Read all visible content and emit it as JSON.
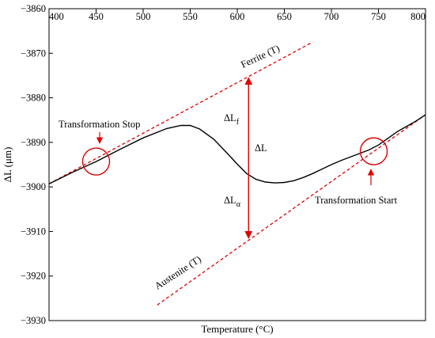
{
  "chart_data": {
    "type": "line",
    "xlabel": "Temperature (°C)",
    "ylabel": "ΔL (μm)",
    "xlim": [
      400,
      800
    ],
    "ylim": [
      -3930,
      -3860
    ],
    "x_ticks": [
      400,
      450,
      500,
      550,
      600,
      650,
      700,
      750,
      800
    ],
    "y_ticks": [
      -3860,
      -3870,
      -3880,
      -3890,
      -3900,
      -3910,
      -3920,
      -3930
    ],
    "grid": false,
    "series": [
      {
        "color": "#000000",
        "style": "solid",
        "x": [
          400,
          425,
          450,
          475,
          500,
          525,
          540,
          550,
          560,
          575,
          590,
          600,
          610,
          620,
          630,
          640,
          650,
          660,
          670,
          680,
          690,
          700,
          710,
          720,
          730,
          740,
          750,
          760,
          770,
          780,
          790,
          800
        ],
        "y": [
          -3899.3,
          -3896.7,
          -3894.3,
          -3891.6,
          -3889.0,
          -3886.9,
          -3886.2,
          -3886.2,
          -3887.0,
          -3889.3,
          -3892.6,
          -3894.9,
          -3897.0,
          -3898.3,
          -3898.9,
          -3899.1,
          -3899.0,
          -3898.6,
          -3897.9,
          -3897.0,
          -3896.0,
          -3895.0,
          -3894.1,
          -3893.3,
          -3892.5,
          -3891.7,
          -3890.6,
          -3889.1,
          -3887.6,
          -3886.4,
          -3885.2,
          -3883.8
        ]
      }
    ],
    "reference_lines": [
      {
        "label": "Ferrite (T)",
        "color": "#e00000",
        "style": "dashed",
        "x": [
          400,
          680
        ],
        "y": [
          -3899.3,
          -3867.5
        ]
      },
      {
        "label": "Austenite (T)",
        "color": "#e00000",
        "style": "dashed",
        "x": [
          515,
          800
        ],
        "y": [
          -3926.5,
          -3883.8
        ]
      }
    ],
    "annotations": [
      {
        "text": "Transformation Stop",
        "color": "#e00000"
      },
      {
        "text": "Transformation Start",
        "color": "#e00000"
      },
      {
        "text": "ΔL",
        "sub": "f"
      },
      {
        "text": "ΔL"
      },
      {
        "text": "ΔL",
        "sub": "α"
      }
    ],
    "markers": {
      "circle_color": "#e00000",
      "stop_circle_center": [
        450,
        -3894.3
      ],
      "start_circle_center": [
        745,
        -3892.0
      ],
      "arrow_x": 612,
      "arrow_y_range": [
        -3875.5,
        -3911.5
      ]
    }
  }
}
